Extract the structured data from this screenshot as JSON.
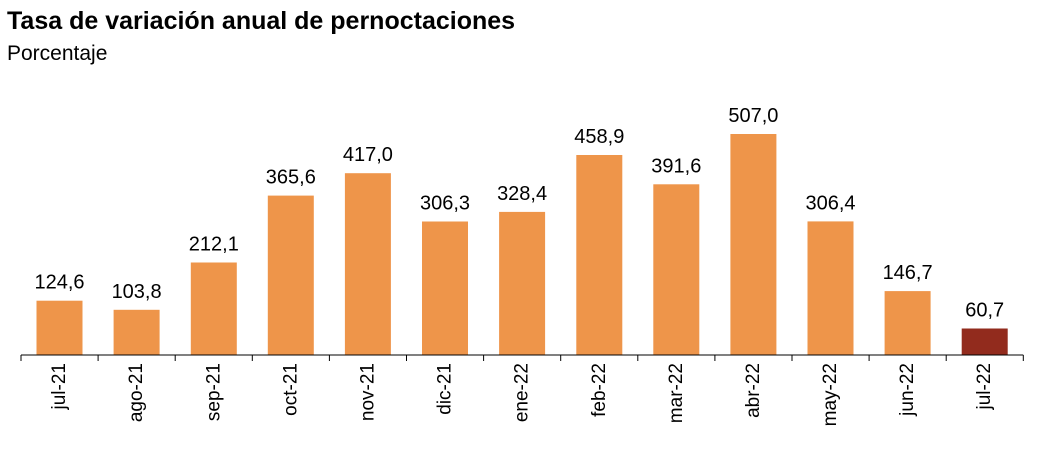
{
  "chart_data": {
    "type": "bar",
    "title": "Tasa de variación anual de pernoctaciones",
    "subtitle": "Porcentaje",
    "categories": [
      "jul-21",
      "ago-21",
      "sep-21",
      "oct-21",
      "nov-21",
      "dic-21",
      "ene-22",
      "feb-22",
      "mar-22",
      "abr-22",
      "may-22",
      "jun-22",
      "jul-22"
    ],
    "values": [
      124.6,
      103.8,
      212.1,
      365.6,
      417.0,
      306.3,
      328.4,
      458.9,
      391.6,
      507.0,
      306.4,
      146.7,
      60.7
    ],
    "data_labels": [
      "124,6",
      "103,8",
      "212,1",
      "365,6",
      "417,0",
      "306,3",
      "328,4",
      "458,9",
      "391,6",
      "507,0",
      "306,4",
      "146,7",
      "60,7"
    ],
    "colors": {
      "bar": "#EE954A",
      "highlight": "#922B1D",
      "axis": "#000000"
    },
    "highlight_index": 12,
    "ylim": [
      0,
      507
    ],
    "grid": false,
    "legend": "none"
  }
}
